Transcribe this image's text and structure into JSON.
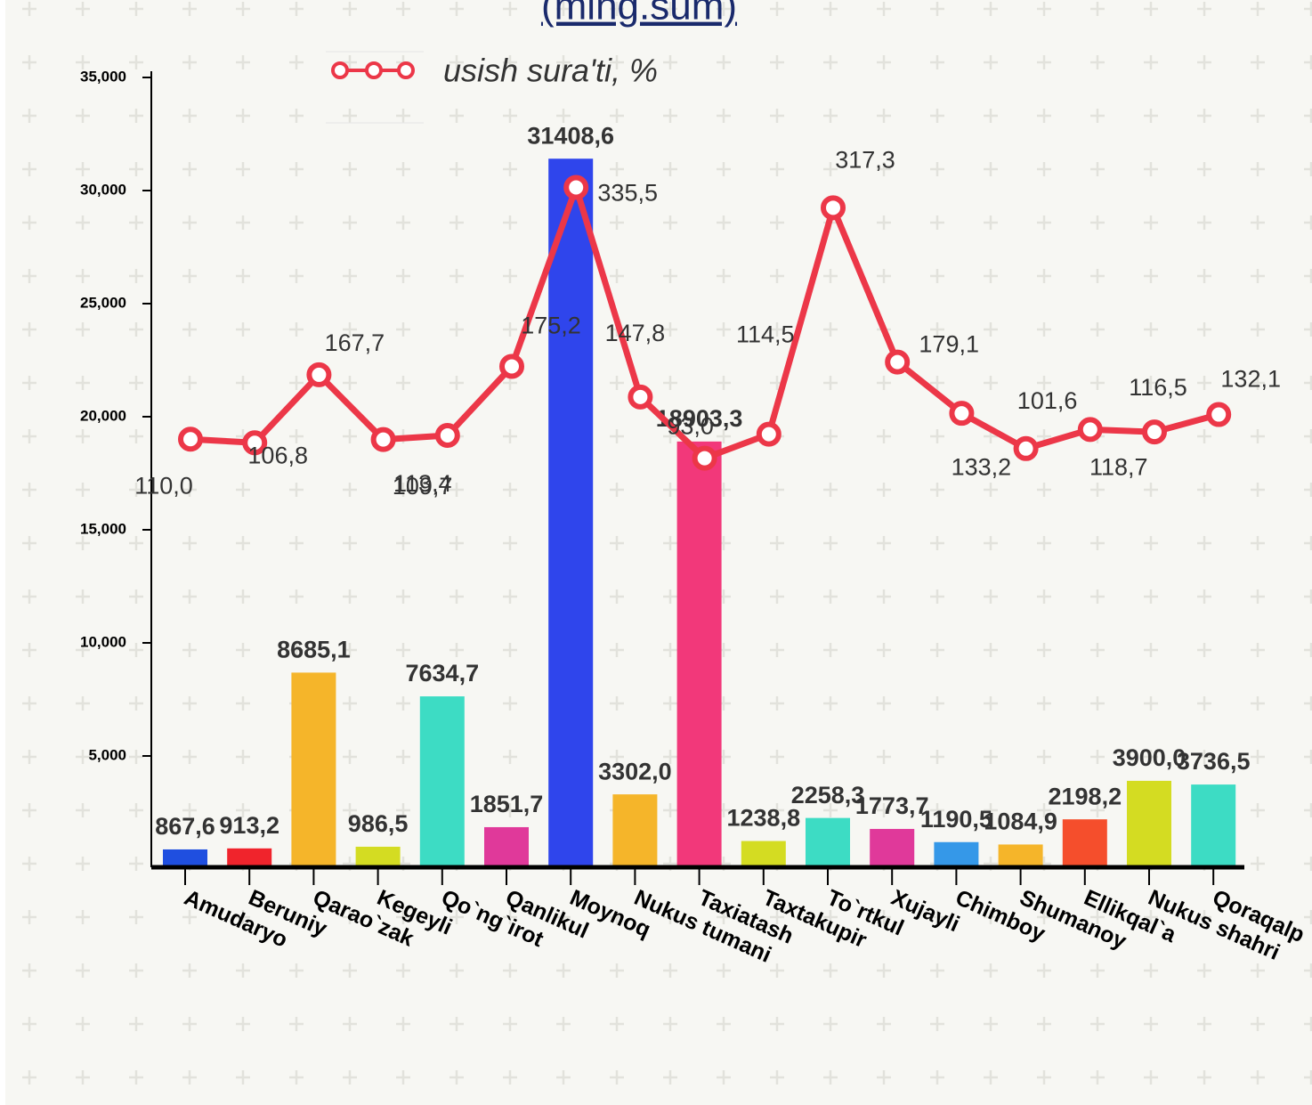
{
  "chart_data": {
    "type": "bar-line",
    "title": "(ming.sum)",
    "categories": [
      "Amudaryo",
      "Beruniy",
      "Qarao`zak",
      "Kegeyli",
      "Qo`ng`irot",
      "Qanlikul",
      "Moynoq",
      "Nukus tumani",
      "Taxiatash",
      "Taxtakupir",
      "To`rtkul",
      "Xujayli",
      "Chimboy",
      "Shumanoy",
      "Ellikqal`a",
      "Nukus shahri",
      "Qoraqalp"
    ],
    "series": [
      {
        "type": "bar",
        "values": [
          867.6,
          913.2,
          8685.1,
          986.5,
          7634.7,
          1851.7,
          31408.6,
          3302.0,
          18903.3,
          1238.8,
          2258.3,
          1773.7,
          1190.5,
          1084.9,
          2198.2,
          3900.0,
          3736.5
        ],
        "value_labels": [
          "867,6",
          "913,2",
          "8685,1",
          "986,5",
          "7634,7",
          "1851,7",
          "31408,6",
          "3302,0",
          "18903,3",
          "1238,8",
          "2258,3",
          "1773,7",
          "1190,5",
          "1084,9",
          "2198,2",
          "3900,0",
          "3736,5"
        ],
        "colors": [
          "#1f4fe0",
          "#f0242c",
          "#f5b52a",
          "#d4dc22",
          "#3ddcc4",
          "#e0399a",
          "#2f45ec",
          "#f5b52a",
          "#f2387a",
          "#d4dc22",
          "#3ddcc4",
          "#e0399a",
          "#3598e8",
          "#f5b52a",
          "#f54e2c",
          "#d4dc22",
          "#3ddcc4"
        ]
      },
      {
        "type": "line",
        "name": "usish sura'ti, %",
        "color": "#ec3748",
        "axis": "y2",
        "values": [
          110.0,
          106.8,
          167.7,
          109.7,
          113.4,
          175.2,
          335.5,
          147.8,
          93.0,
          114.5,
          317.3,
          179.1,
          133.2,
          101.6,
          118.7,
          116.5,
          132.1
        ],
        "value_labels": [
          "110,0",
          "106,8",
          "167,7",
          "109,7",
          "113,4",
          "175,2",
          "335,5",
          "147,8",
          "93,0",
          "114,5",
          "317,3",
          "179,1",
          "133,2",
          "101,6",
          "118,7",
          "116,5",
          "132,1"
        ]
      }
    ],
    "ylim": [
      0,
      35000
    ],
    "yticks": [
      {
        "value": 5000,
        "label": "5,000"
      },
      {
        "value": 10000,
        "label": "10,000"
      },
      {
        "value": 15000,
        "label": "15,000"
      },
      {
        "value": 20000,
        "label": "20,000"
      },
      {
        "value": 25000,
        "label": "25,000"
      },
      {
        "value": 30000,
        "label": "30,000"
      },
      {
        "value": 35000,
        "label": "35,000"
      }
    ],
    "y2lim": [
      -275,
      434
    ],
    "legend": "top"
  }
}
